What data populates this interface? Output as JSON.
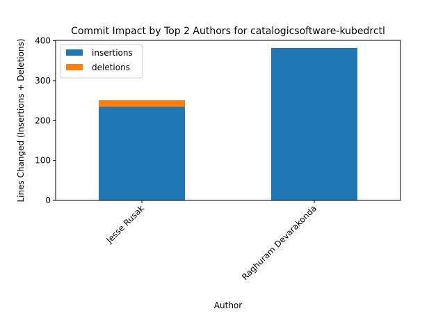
{
  "chart_data": {
    "type": "bar",
    "stacked": true,
    "title": "Commit Impact by Top 2 Authors for catalogicsoftware-kubedrctl",
    "xlabel": "Author",
    "ylabel": "Lines Changed (Insertions + Deletions)",
    "categories": [
      "Jesse Rusak",
      "Raghuram Devarakonda"
    ],
    "series": [
      {
        "name": "insertions",
        "values": [
          235,
          382
        ],
        "color": "#1f77b4"
      },
      {
        "name": "deletions",
        "values": [
          16,
          0
        ],
        "color": "#ff7f0e"
      }
    ],
    "ylim": [
      0,
      401
    ],
    "yticks": [
      0,
      100,
      200,
      300,
      400
    ],
    "grid": false,
    "legend": "top-left"
  }
}
